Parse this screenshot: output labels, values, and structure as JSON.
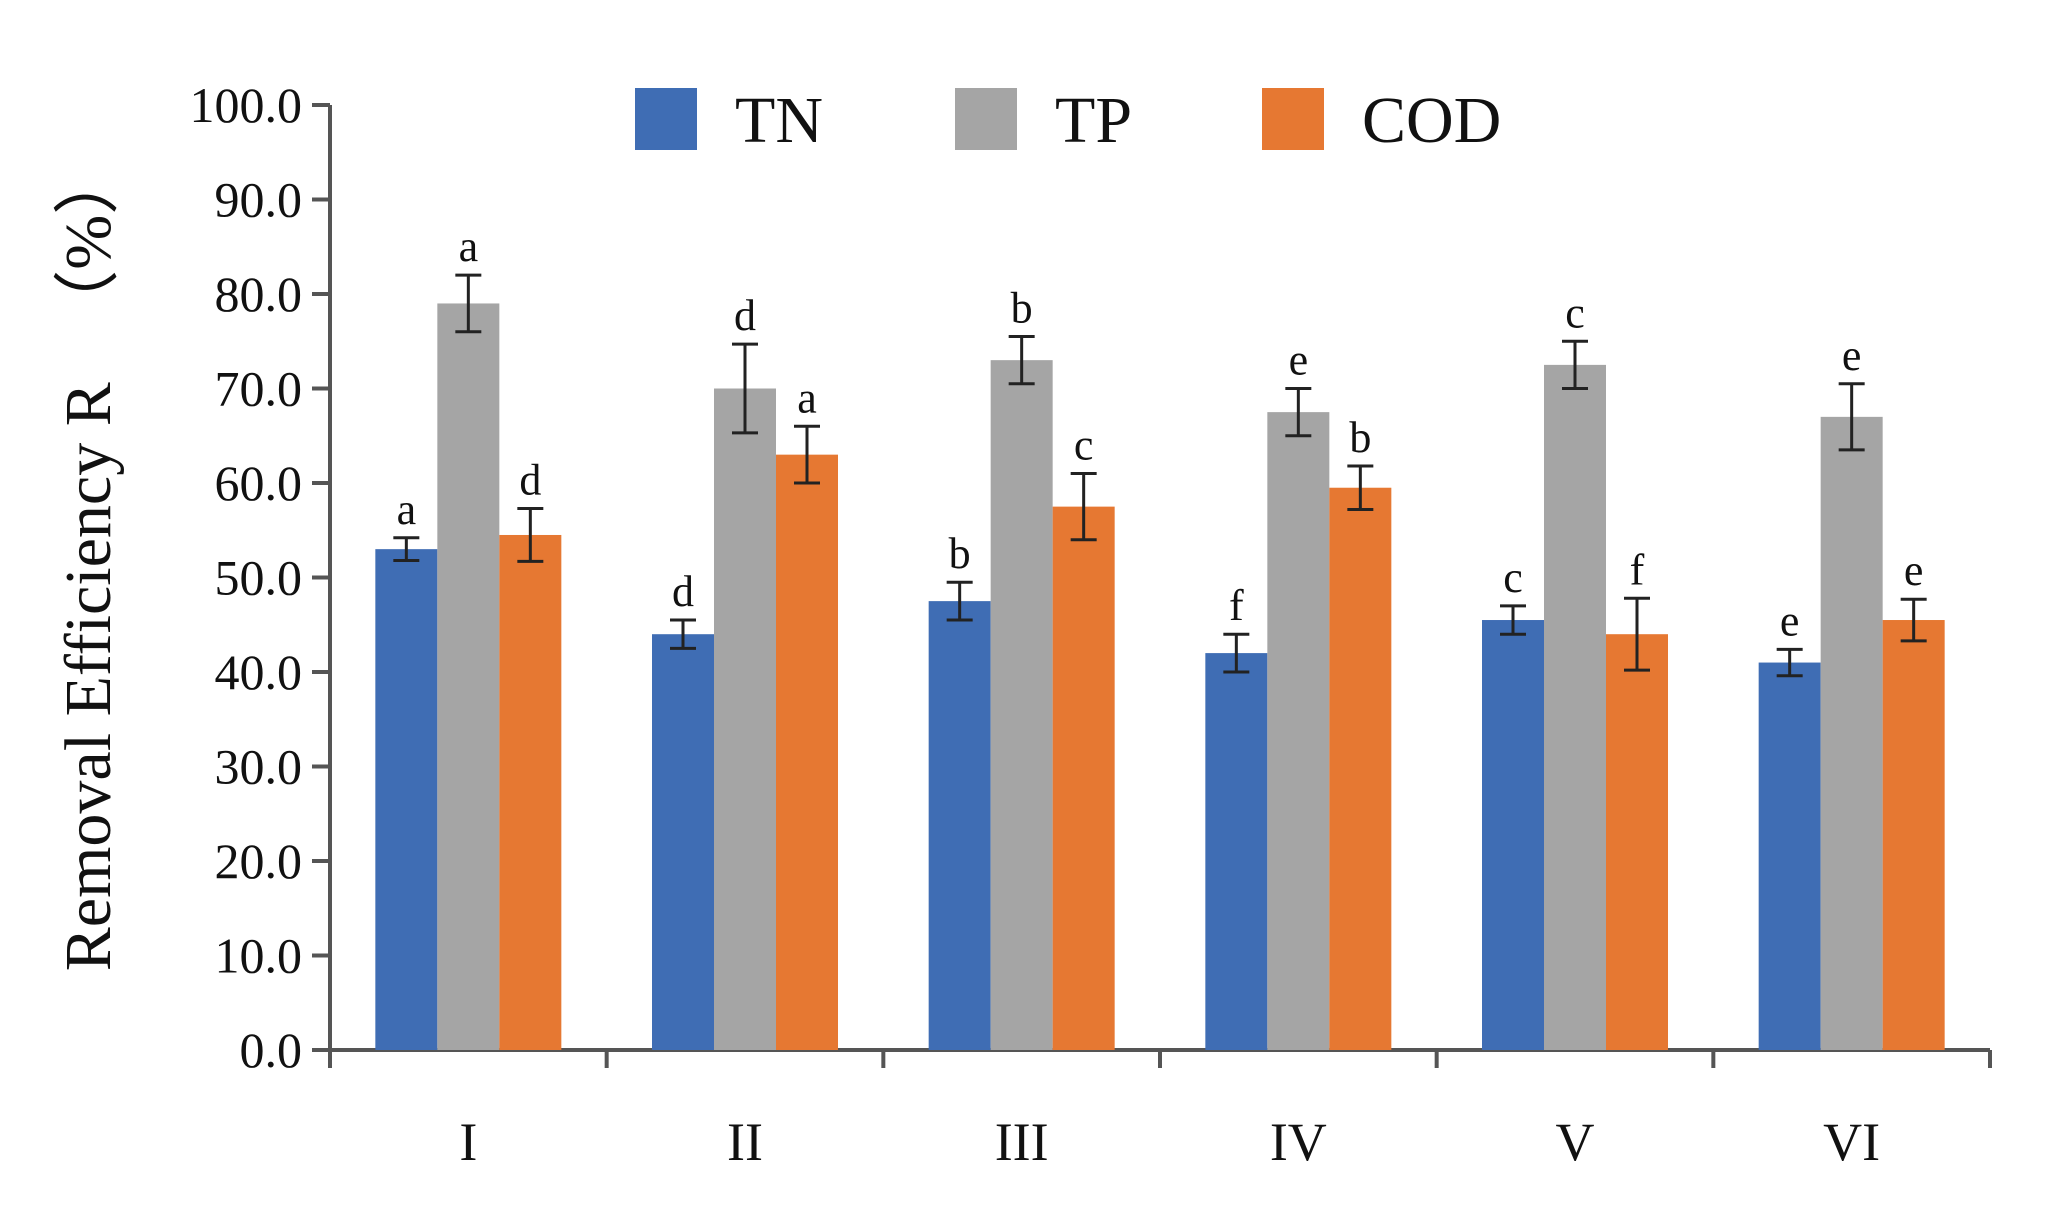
{
  "chart_data": {
    "type": "bar",
    "title": "",
    "xlabel": "",
    "ylabel": "Removal Efficiency R",
    "ylabel_unit": "（%）",
    "ylim": [
      0,
      100
    ],
    "ytick_step": 10,
    "ytick_labels": [
      "0.0",
      "10.0",
      "20.0",
      "30.0",
      "40.0",
      "50.0",
      "60.0",
      "70.0",
      "80.0",
      "90.0",
      "100.0"
    ],
    "categories": [
      "I",
      "II",
      "III",
      "IV",
      "V",
      "VI"
    ],
    "series": [
      {
        "name": "TN",
        "color": "#3f6db4",
        "values": [
          53.0,
          44.0,
          47.5,
          42.0,
          45.5,
          41.0
        ],
        "errors": [
          1.2,
          1.5,
          2.0,
          2.0,
          1.5,
          1.4
        ],
        "labels": [
          "a",
          "d",
          "b",
          "f",
          "c",
          "e"
        ]
      },
      {
        "name": "TP",
        "color": "#a5a5a5",
        "values": [
          79.0,
          70.0,
          73.0,
          67.5,
          72.5,
          67.0
        ],
        "errors": [
          3.0,
          4.7,
          2.5,
          2.5,
          2.5,
          3.5
        ],
        "labels": [
          "a",
          "d",
          "b",
          "e",
          "c",
          "e"
        ]
      },
      {
        "name": "COD",
        "color": "#e67832",
        "values": [
          54.5,
          63.0,
          57.5,
          59.5,
          44.0,
          45.5
        ],
        "errors": [
          2.8,
          3.0,
          3.5,
          2.3,
          3.8,
          2.2
        ],
        "labels": [
          "d",
          "a",
          "c",
          "b",
          "f",
          "e"
        ]
      }
    ],
    "legend_position": "top"
  }
}
